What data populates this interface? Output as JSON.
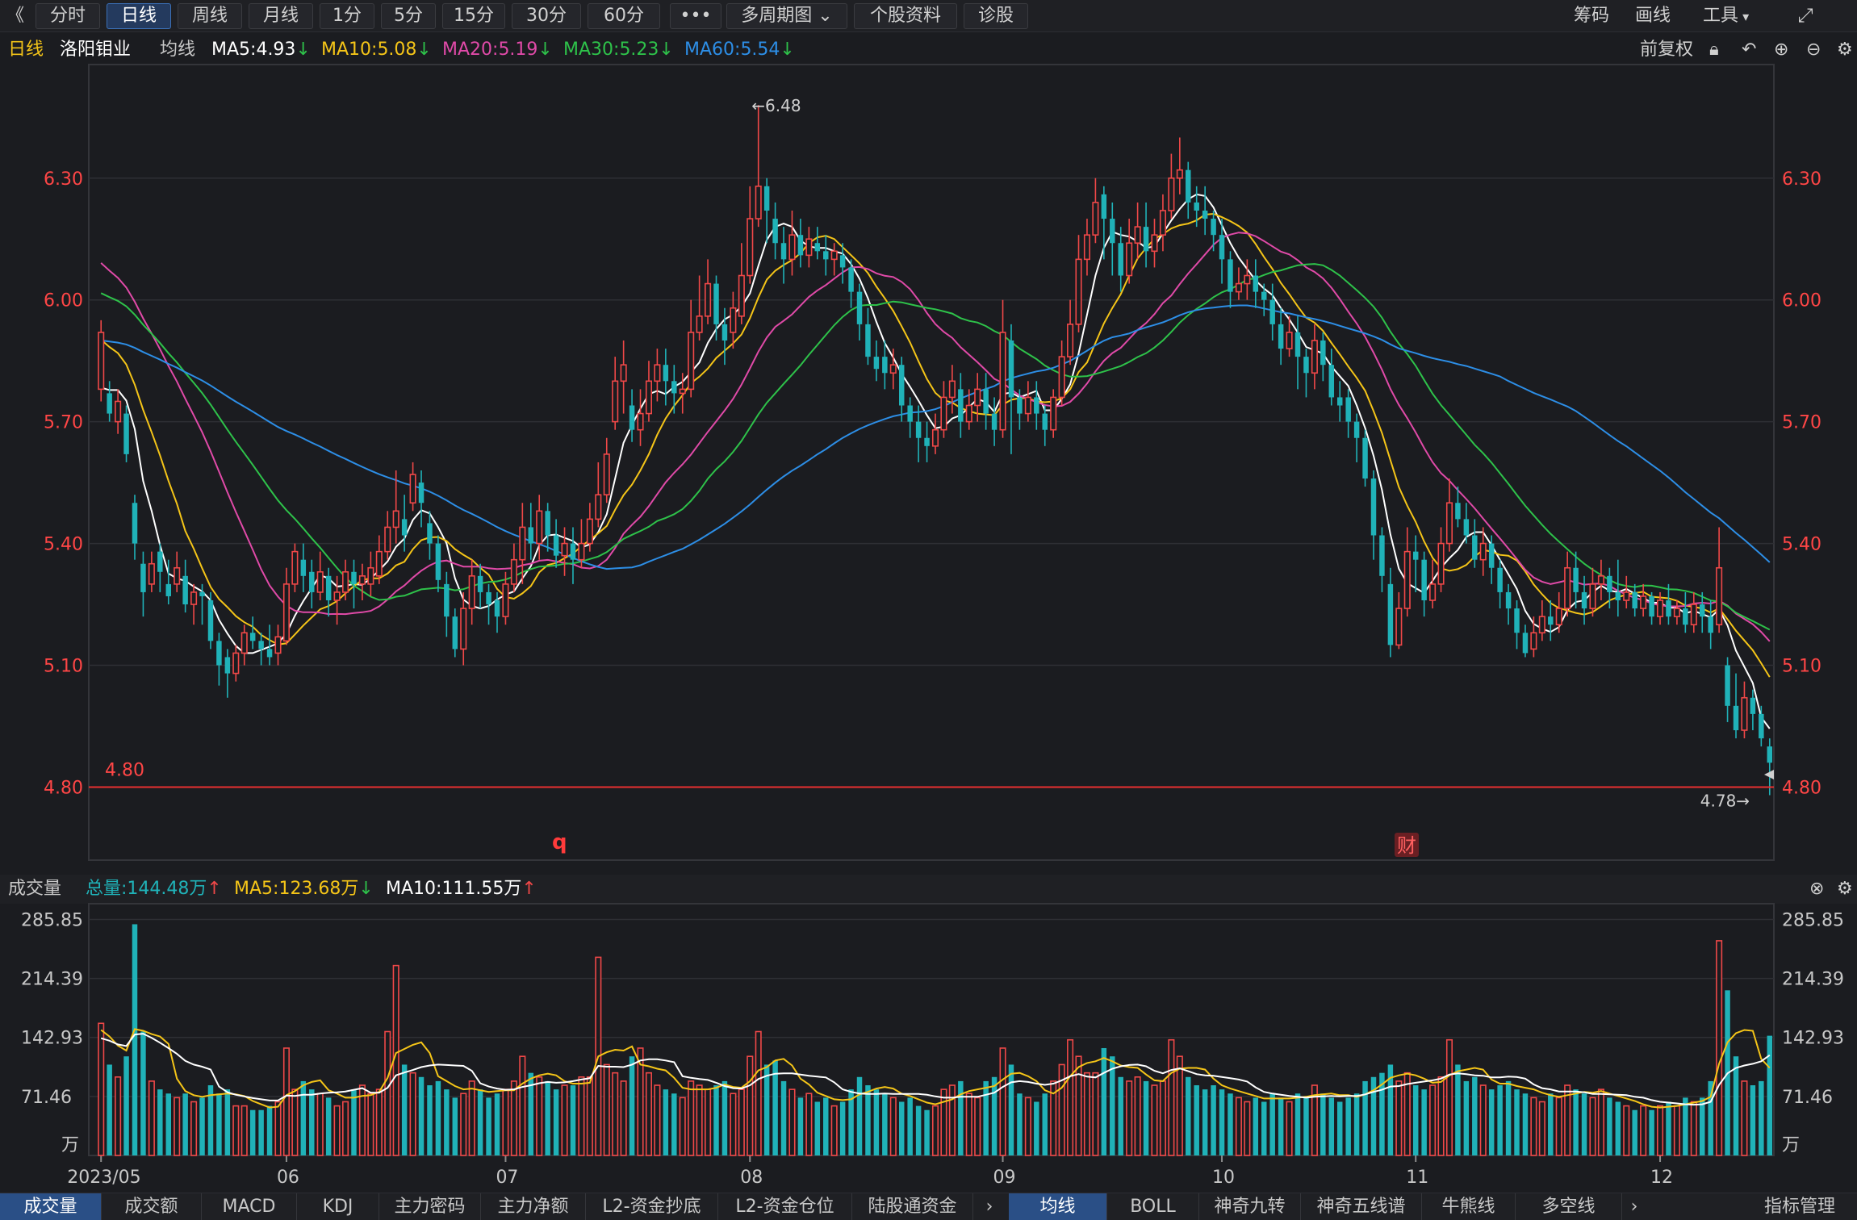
{
  "toolbar": {
    "back_label": "《",
    "periods": [
      "分时",
      "日线",
      "周线",
      "月线",
      "1分",
      "5分",
      "15分",
      "30分",
      "60分"
    ],
    "active_period": 1,
    "more_label": "•••",
    "multi_period_label": "多周期图",
    "stock_info_label": "个股资料",
    "diagnose_label": "诊股",
    "chips_label": "筹码",
    "draw_label": "画线",
    "tools_label": "工具"
  },
  "infobar": {
    "period": "日线",
    "stock_name": "洛阳钼业",
    "ma_label": "均线",
    "ma5": "MA5:4.93",
    "ma10": "MA10:5.08",
    "ma20": "MA20:5.19",
    "ma30": "MA30:5.23",
    "ma60": "MA60:5.54",
    "adjust_label": "前复权",
    "arrow": "↓"
  },
  "volinfo": {
    "title": "成交量",
    "total": "总量:144.48万",
    "ma5": "MA5:123.68万",
    "ma10": "MA10:111.55万",
    "arrow_up": "↑",
    "arrow_down": "↓"
  },
  "bottom_tabs": [
    "成交量",
    "成交额",
    "MACD",
    "KDJ",
    "主力密码",
    "主力净额",
    "L2-资金抄底",
    "L2-资金仓位",
    "陆股通资金"
  ],
  "bottom_tabs2": [
    "均线",
    "BOLL",
    "神奇九转",
    "神奇五线谱",
    "牛熊线",
    "多空线"
  ],
  "index_mgmt_label": "指标管理",
  "markers": {
    "q": "q",
    "cai": "财"
  },
  "colors": {
    "up": "#f04848",
    "down": "#20b2b8",
    "ma5": "#ffffff",
    "ma10": "#f5c518",
    "ma20": "#e04aa8",
    "ma30": "#2ec24a",
    "ma60": "#2d8ee6",
    "price_tick": "#ff4646"
  },
  "chart_data": {
    "type": "candlestick",
    "price_axis": {
      "ticks": [
        6.3,
        6.0,
        5.7,
        5.4,
        5.1,
        4.8
      ],
      "tick_labels": [
        "6.30",
        "6.00",
        "5.70",
        "5.40",
        "5.10",
        "4.80"
      ],
      "range": [
        4.62,
        6.54
      ]
    },
    "volume_axis": {
      "ticks": [
        285.85,
        214.39,
        142.93,
        71.46
      ],
      "tick_labels": [
        "285.85",
        "214.39",
        "142.93",
        "71.46"
      ],
      "unit": "万",
      "range": [
        0,
        300
      ]
    },
    "x_labels": [
      {
        "label": "2023/05",
        "index": 0
      },
      {
        "label": "06",
        "index": 22
      },
      {
        "label": "07",
        "index": 48
      },
      {
        "label": "08",
        "index": 77
      },
      {
        "label": "09",
        "index": 107
      },
      {
        "label": "10",
        "index": 133
      },
      {
        "label": "11",
        "index": 156
      },
      {
        "label": "12",
        "index": 185
      }
    ],
    "high_annotation": {
      "label": "←6.48",
      "value": 6.48,
      "index": 77
    },
    "low_annotation": {
      "label": "4.78→",
      "value": 4.78,
      "index": 198
    },
    "support_line": {
      "label": "4.80",
      "value": 4.8
    },
    "candles": [
      [
        5.78,
        5.92,
        5.95,
        5.75,
        160
      ],
      [
        5.77,
        5.72,
        5.8,
        5.7,
        110
      ],
      [
        5.7,
        5.75,
        5.78,
        5.67,
        95
      ],
      [
        5.72,
        5.62,
        5.74,
        5.6,
        120
      ],
      [
        5.5,
        5.4,
        5.52,
        5.36,
        280
      ],
      [
        5.35,
        5.28,
        5.38,
        5.22,
        150
      ],
      [
        5.3,
        5.35,
        5.38,
        5.28,
        90
      ],
      [
        5.38,
        5.33,
        5.4,
        5.28,
        80
      ],
      [
        5.3,
        5.27,
        5.36,
        5.25,
        75
      ],
      [
        5.3,
        5.34,
        5.38,
        5.28,
        70
      ],
      [
        5.32,
        5.25,
        5.36,
        5.23,
        75
      ],
      [
        5.25,
        5.28,
        5.3,
        5.2,
        65
      ],
      [
        5.28,
        5.27,
        5.3,
        5.2,
        70
      ],
      [
        5.26,
        5.16,
        5.28,
        5.14,
        85
      ],
      [
        5.16,
        5.1,
        5.18,
        5.05,
        75
      ],
      [
        5.12,
        5.08,
        5.14,
        5.02,
        80
      ],
      [
        5.08,
        5.13,
        5.15,
        5.06,
        60
      ],
      [
        5.13,
        5.18,
        5.2,
        5.1,
        60
      ],
      [
        5.18,
        5.16,
        5.22,
        5.14,
        55
      ],
      [
        5.16,
        5.14,
        5.18,
        5.1,
        55
      ],
      [
        5.14,
        5.12,
        5.2,
        5.1,
        60
      ],
      [
        5.13,
        5.17,
        5.2,
        5.1,
        65
      ],
      [
        5.16,
        5.3,
        5.34,
        5.15,
        130
      ],
      [
        5.3,
        5.38,
        5.4,
        5.28,
        80
      ],
      [
        5.36,
        5.32,
        5.4,
        5.28,
        90
      ],
      [
        5.33,
        5.28,
        5.36,
        5.24,
        80
      ],
      [
        5.28,
        5.33,
        5.38,
        5.26,
        75
      ],
      [
        5.32,
        5.26,
        5.34,
        5.22,
        70
      ],
      [
        5.26,
        5.28,
        5.32,
        5.2,
        60
      ],
      [
        5.28,
        5.33,
        5.36,
        5.26,
        65
      ],
      [
        5.33,
        5.3,
        5.36,
        5.24,
        80
      ],
      [
        5.3,
        5.32,
        5.35,
        5.26,
        85
      ],
      [
        5.3,
        5.34,
        5.38,
        5.27,
        75
      ],
      [
        5.32,
        5.38,
        5.42,
        5.3,
        80
      ],
      [
        5.38,
        5.44,
        5.48,
        5.36,
        150
      ],
      [
        5.44,
        5.48,
        5.58,
        5.4,
        230
      ],
      [
        5.46,
        5.42,
        5.52,
        5.38,
        110
      ],
      [
        5.5,
        5.57,
        5.6,
        5.48,
        100
      ],
      [
        5.55,
        5.5,
        5.58,
        5.44,
        95
      ],
      [
        5.45,
        5.4,
        5.48,
        5.36,
        85
      ],
      [
        5.4,
        5.31,
        5.42,
        5.28,
        90
      ],
      [
        5.3,
        5.22,
        5.33,
        5.17,
        80
      ],
      [
        5.22,
        5.14,
        5.24,
        5.12,
        70
      ],
      [
        5.14,
        5.24,
        5.28,
        5.1,
        75
      ],
      [
        5.24,
        5.32,
        5.36,
        5.2,
        90
      ],
      [
        5.32,
        5.28,
        5.35,
        5.24,
        80
      ],
      [
        5.28,
        5.25,
        5.3,
        5.2,
        70
      ],
      [
        5.26,
        5.22,
        5.28,
        5.18,
        75
      ],
      [
        5.22,
        5.3,
        5.33,
        5.2,
        80
      ],
      [
        5.3,
        5.36,
        5.4,
        5.28,
        90
      ],
      [
        5.36,
        5.44,
        5.5,
        5.3,
        120
      ],
      [
        5.44,
        5.4,
        5.5,
        5.36,
        100
      ],
      [
        5.4,
        5.48,
        5.52,
        5.36,
        95
      ],
      [
        5.48,
        5.42,
        5.5,
        5.38,
        90
      ],
      [
        5.42,
        5.37,
        5.46,
        5.34,
        80
      ],
      [
        5.37,
        5.4,
        5.44,
        5.32,
        85
      ],
      [
        5.4,
        5.36,
        5.44,
        5.3,
        85
      ],
      [
        5.36,
        5.4,
        5.46,
        5.34,
        95
      ],
      [
        5.4,
        5.46,
        5.5,
        5.38,
        95
      ],
      [
        5.46,
        5.52,
        5.6,
        5.44,
        240
      ],
      [
        5.52,
        5.62,
        5.66,
        5.5,
        110
      ],
      [
        5.7,
        5.8,
        5.86,
        5.68,
        100
      ],
      [
        5.8,
        5.84,
        5.9,
        5.72,
        90
      ],
      [
        5.74,
        5.68,
        5.78,
        5.65,
        120
      ],
      [
        5.68,
        5.72,
        5.78,
        5.64,
        130
      ],
      [
        5.72,
        5.8,
        5.85,
        5.7,
        100
      ],
      [
        5.8,
        5.84,
        5.88,
        5.75,
        85
      ],
      [
        5.84,
        5.8,
        5.88,
        5.74,
        80
      ],
      [
        5.8,
        5.77,
        5.84,
        5.72,
        75
      ],
      [
        5.77,
        5.78,
        5.82,
        5.72,
        70
      ],
      [
        5.78,
        5.92,
        6.0,
        5.76,
        90
      ],
      [
        5.92,
        5.96,
        6.06,
        5.9,
        85
      ],
      [
        5.96,
        6.04,
        6.1,
        5.94,
        80
      ],
      [
        6.04,
        5.94,
        6.06,
        5.9,
        85
      ],
      [
        5.94,
        5.9,
        5.98,
        5.84,
        90
      ],
      [
        5.92,
        5.98,
        6.02,
        5.88,
        75
      ],
      [
        5.96,
        6.06,
        6.14,
        5.94,
        80
      ],
      [
        6.06,
        6.2,
        6.28,
        6.04,
        120
      ],
      [
        6.2,
        6.28,
        6.48,
        6.18,
        150
      ],
      [
        6.28,
        6.22,
        6.3,
        6.14,
        110
      ],
      [
        6.2,
        6.14,
        6.24,
        6.1,
        115
      ],
      [
        6.14,
        6.1,
        6.18,
        6.04,
        90
      ],
      [
        6.1,
        6.16,
        6.22,
        6.06,
        80
      ],
      [
        6.16,
        6.11,
        6.2,
        6.08,
        70
      ],
      [
        6.11,
        6.15,
        6.18,
        6.08,
        75
      ],
      [
        6.14,
        6.12,
        6.18,
        6.1,
        65
      ],
      [
        6.12,
        6.1,
        6.16,
        6.06,
        70
      ],
      [
        6.1,
        6.12,
        6.14,
        6.06,
        60
      ],
      [
        6.11,
        6.08,
        6.14,
        6.04,
        65
      ],
      [
        6.08,
        6.02,
        6.1,
        5.98,
        80
      ],
      [
        6.02,
        5.94,
        6.04,
        5.9,
        95
      ],
      [
        5.94,
        5.86,
        5.98,
        5.84,
        85
      ],
      [
        5.86,
        5.83,
        5.9,
        5.8,
        80
      ],
      [
        5.86,
        5.82,
        5.9,
        5.78,
        75
      ],
      [
        5.82,
        5.84,
        5.88,
        5.78,
        70
      ],
      [
        5.84,
        5.74,
        5.86,
        5.7,
        65
      ],
      [
        5.74,
        5.7,
        5.76,
        5.66,
        70
      ],
      [
        5.7,
        5.66,
        5.74,
        5.6,
        60
      ],
      [
        5.66,
        5.64,
        5.7,
        5.6,
        55
      ],
      [
        5.64,
        5.68,
        5.72,
        5.62,
        60
      ],
      [
        5.68,
        5.76,
        5.8,
        5.66,
        80
      ],
      [
        5.76,
        5.8,
        5.84,
        5.72,
        85
      ],
      [
        5.78,
        5.7,
        5.82,
        5.66,
        90
      ],
      [
        5.7,
        5.74,
        5.78,
        5.68,
        75
      ],
      [
        5.74,
        5.78,
        5.82,
        5.7,
        70
      ],
      [
        5.78,
        5.72,
        5.82,
        5.68,
        90
      ],
      [
        5.72,
        5.68,
        5.76,
        5.64,
        95
      ],
      [
        5.68,
        5.92,
        6.0,
        5.66,
        130
      ],
      [
        5.9,
        5.76,
        5.94,
        5.62,
        110
      ],
      [
        5.76,
        5.72,
        5.78,
        5.68,
        75
      ],
      [
        5.72,
        5.76,
        5.8,
        5.7,
        70
      ],
      [
        5.76,
        5.72,
        5.8,
        5.68,
        65
      ],
      [
        5.72,
        5.68,
        5.74,
        5.64,
        75
      ],
      [
        5.68,
        5.76,
        5.78,
        5.66,
        90
      ],
      [
        5.76,
        5.86,
        5.9,
        5.74,
        110
      ],
      [
        5.86,
        5.94,
        6.0,
        5.84,
        140
      ],
      [
        5.94,
        6.1,
        6.16,
        5.92,
        120
      ],
      [
        6.1,
        6.16,
        6.2,
        6.06,
        100
      ],
      [
        6.16,
        6.24,
        6.3,
        6.14,
        100
      ],
      [
        6.26,
        6.2,
        6.28,
        6.1,
        130
      ],
      [
        6.2,
        6.14,
        6.24,
        6.06,
        120
      ],
      [
        6.14,
        6.06,
        6.18,
        6.02,
        95
      ],
      [
        6.06,
        6.14,
        6.2,
        6.04,
        90
      ],
      [
        6.14,
        6.18,
        6.24,
        6.1,
        95
      ],
      [
        6.18,
        6.12,
        6.24,
        6.08,
        90
      ],
      [
        6.12,
        6.16,
        6.2,
        6.08,
        85
      ],
      [
        6.16,
        6.22,
        6.26,
        6.12,
        90
      ],
      [
        6.22,
        6.3,
        6.36,
        6.2,
        140
      ],
      [
        6.3,
        6.32,
        6.4,
        6.26,
        120
      ],
      [
        6.32,
        6.24,
        6.34,
        6.2,
        95
      ],
      [
        6.24,
        6.22,
        6.28,
        6.18,
        85
      ],
      [
        6.22,
        6.2,
        6.28,
        6.16,
        80
      ],
      [
        6.2,
        6.16,
        6.22,
        6.12,
        85
      ],
      [
        6.16,
        6.1,
        6.2,
        6.04,
        80
      ],
      [
        6.1,
        6.02,
        6.12,
        5.98,
        75
      ],
      [
        6.02,
        6.04,
        6.08,
        6.0,
        70
      ],
      [
        6.04,
        6.06,
        6.1,
        6.0,
        65
      ],
      [
        6.06,
        6.02,
        6.1,
        5.98,
        70
      ],
      [
        6.02,
        6.0,
        6.04,
        5.96,
        65
      ],
      [
        6.0,
        5.94,
        6.04,
        5.9,
        75
      ],
      [
        5.94,
        5.88,
        5.98,
        5.84,
        70
      ],
      [
        5.88,
        5.92,
        5.96,
        5.86,
        65
      ],
      [
        5.92,
        5.86,
        5.96,
        5.78,
        75
      ],
      [
        5.86,
        5.82,
        5.88,
        5.76,
        70
      ],
      [
        5.82,
        5.9,
        5.94,
        5.78,
        85
      ],
      [
        5.9,
        5.84,
        5.92,
        5.8,
        75
      ],
      [
        5.84,
        5.76,
        5.88,
        5.74,
        70
      ],
      [
        5.76,
        5.74,
        5.8,
        5.7,
        65
      ],
      [
        5.76,
        5.7,
        5.78,
        5.66,
        70
      ],
      [
        5.7,
        5.66,
        5.72,
        5.6,
        75
      ],
      [
        5.66,
        5.56,
        5.68,
        5.54,
        90
      ],
      [
        5.56,
        5.42,
        5.58,
        5.36,
        95
      ],
      [
        5.42,
        5.32,
        5.44,
        5.28,
        100
      ],
      [
        5.3,
        5.15,
        5.34,
        5.12,
        110
      ],
      [
        5.15,
        5.24,
        5.28,
        5.14,
        90
      ],
      [
        5.24,
        5.38,
        5.44,
        5.22,
        100
      ],
      [
        5.38,
        5.36,
        5.42,
        5.28,
        85
      ],
      [
        5.36,
        5.26,
        5.38,
        5.22,
        80
      ],
      [
        5.26,
        5.3,
        5.36,
        5.24,
        85
      ],
      [
        5.3,
        5.4,
        5.44,
        5.28,
        95
      ],
      [
        5.4,
        5.5,
        5.56,
        5.38,
        140
      ],
      [
        5.5,
        5.46,
        5.54,
        5.44,
        110
      ],
      [
        5.46,
        5.42,
        5.5,
        5.4,
        90
      ],
      [
        5.42,
        5.36,
        5.46,
        5.34,
        95
      ],
      [
        5.36,
        5.4,
        5.44,
        5.32,
        85
      ],
      [
        5.4,
        5.34,
        5.42,
        5.3,
        80
      ],
      [
        5.34,
        5.28,
        5.36,
        5.24,
        85
      ],
      [
        5.28,
        5.24,
        5.3,
        5.2,
        90
      ],
      [
        5.24,
        5.18,
        5.26,
        5.14,
        80
      ],
      [
        5.18,
        5.13,
        5.2,
        5.12,
        75
      ],
      [
        5.14,
        5.18,
        5.22,
        5.12,
        70
      ],
      [
        5.18,
        5.22,
        5.26,
        5.16,
        65
      ],
      [
        5.22,
        5.2,
        5.26,
        5.16,
        75
      ],
      [
        5.2,
        5.24,
        5.28,
        5.18,
        70
      ],
      [
        5.24,
        5.34,
        5.38,
        5.22,
        85
      ],
      [
        5.34,
        5.28,
        5.38,
        5.24,
        80
      ],
      [
        5.28,
        5.24,
        5.32,
        5.2,
        75
      ],
      [
        5.24,
        5.3,
        5.34,
        5.22,
        70
      ],
      [
        5.3,
        5.32,
        5.36,
        5.26,
        80
      ],
      [
        5.32,
        5.28,
        5.34,
        5.24,
        70
      ],
      [
        5.28,
        5.26,
        5.36,
        5.22,
        65
      ],
      [
        5.26,
        5.28,
        5.32,
        5.24,
        60
      ],
      [
        5.28,
        5.24,
        5.3,
        5.22,
        55
      ],
      [
        5.24,
        5.27,
        5.3,
        5.22,
        60
      ],
      [
        5.27,
        5.22,
        5.28,
        5.2,
        55
      ],
      [
        5.22,
        5.26,
        5.28,
        5.2,
        60
      ],
      [
        5.26,
        5.22,
        5.3,
        5.2,
        65
      ],
      [
        5.22,
        5.24,
        5.26,
        5.2,
        60
      ],
      [
        5.24,
        5.2,
        5.28,
        5.18,
        70
      ],
      [
        5.2,
        5.25,
        5.28,
        5.18,
        65
      ],
      [
        5.25,
        5.22,
        5.28,
        5.18,
        70
      ],
      [
        5.22,
        5.18,
        5.26,
        5.14,
        90
      ],
      [
        5.2,
        5.34,
        5.44,
        5.18,
        260
      ],
      [
        5.1,
        5.0,
        5.12,
        4.96,
        200
      ],
      [
        5.0,
        4.94,
        5.08,
        4.92,
        120
      ],
      [
        4.94,
        5.02,
        5.06,
        4.92,
        90
      ],
      [
        5.02,
        4.98,
        5.04,
        4.94,
        85
      ],
      [
        4.98,
        4.92,
        5.0,
        4.9,
        90
      ],
      [
        4.9,
        4.86,
        4.92,
        4.78,
        145
      ]
    ],
    "volume_ma5_lines": "computed",
    "series": [
      {
        "name": "MA5",
        "last": 4.93
      },
      {
        "name": "MA10",
        "last": 5.08
      },
      {
        "name": "MA20",
        "last": 5.19
      },
      {
        "name": "MA30",
        "last": 5.23
      },
      {
        "name": "MA60",
        "last": 5.54
      }
    ]
  }
}
